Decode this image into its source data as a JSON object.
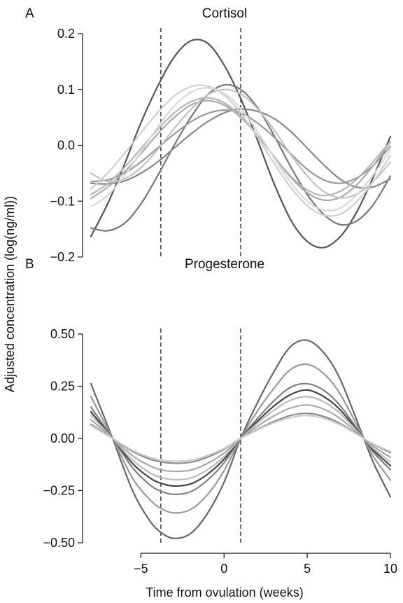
{
  "figure": {
    "ylabel": "Adjusted concentration (log(ng/ml))",
    "xlabel": "Time from ovulation (weeks)"
  },
  "chart_data": [
    {
      "type": "line",
      "panel_letter": "A",
      "title": "Cortisol",
      "xlim": [
        -8,
        10
      ],
      "ylim": [
        -0.2,
        0.2
      ],
      "yticks": [
        0.2,
        0.1,
        0.0,
        -0.1,
        -0.2
      ],
      "ytick_labels": [
        "0.2",
        "0.1",
        "0.0",
        "−0.1",
        "−0.2"
      ],
      "show_x_axis": false,
      "vlines": [
        -3.8,
        1.0
      ],
      "series": [
        {
          "color": "#555555",
          "x": [
            -8,
            -7,
            -6,
            -5,
            -4,
            -3,
            -2,
            -1,
            0,
            1,
            2,
            3,
            4,
            5,
            6,
            7,
            8,
            9,
            10
          ],
          "y": [
            -0.163,
            -0.105,
            -0.035,
            0.04,
            0.105,
            0.158,
            0.187,
            0.183,
            0.144,
            0.084,
            0.01,
            -0.068,
            -0.133,
            -0.172,
            -0.183,
            -0.163,
            -0.118,
            -0.055,
            0.016
          ]
        },
        {
          "color": "#777777",
          "x": [
            -8,
            -7,
            -6,
            -5,
            -4,
            -3,
            -2,
            -1,
            0,
            1,
            2,
            3,
            4,
            5,
            6,
            7,
            8,
            9,
            10
          ],
          "y": [
            -0.148,
            -0.153,
            -0.14,
            -0.105,
            -0.055,
            0.0,
            0.05,
            0.09,
            0.108,
            0.1,
            0.068,
            0.018,
            -0.038,
            -0.088,
            -0.124,
            -0.142,
            -0.135,
            -0.105,
            -0.055
          ]
        },
        {
          "color": "#888888",
          "x": [
            -8,
            -7,
            -6,
            -5,
            -4,
            -3,
            -2,
            -1,
            0,
            1,
            2,
            3,
            4,
            5,
            6,
            7,
            8,
            9,
            10
          ],
          "y": [
            -0.068,
            -0.069,
            -0.064,
            -0.05,
            -0.03,
            -0.005,
            0.02,
            0.042,
            0.058,
            0.065,
            0.061,
            0.048,
            0.025,
            -0.005,
            -0.035,
            -0.061,
            -0.075,
            -0.074,
            -0.06
          ]
        },
        {
          "color": "#999999",
          "x": [
            -8,
            -7,
            -6,
            -5,
            -4,
            -3,
            -2,
            -1,
            0,
            1,
            2,
            3,
            4,
            5,
            6,
            7,
            8,
            9,
            10
          ],
          "y": [
            -0.065,
            -0.062,
            -0.05,
            -0.03,
            -0.005,
            0.02,
            0.042,
            0.057,
            0.063,
            0.058,
            0.04,
            0.015,
            -0.015,
            -0.043,
            -0.062,
            -0.068,
            -0.058,
            -0.035,
            -0.002
          ]
        },
        {
          "color": "#aaaaaa",
          "x": [
            -8,
            -7,
            -6,
            -5,
            -4,
            -3,
            -2,
            -1,
            0,
            1,
            2,
            3,
            4,
            5,
            6,
            7,
            8,
            9,
            10
          ],
          "y": [
            -0.095,
            -0.075,
            -0.048,
            -0.015,
            0.02,
            0.05,
            0.072,
            0.08,
            0.072,
            0.05,
            0.018,
            -0.02,
            -0.057,
            -0.085,
            -0.098,
            -0.093,
            -0.07,
            -0.035,
            0.006
          ]
        },
        {
          "color": "#b5b5b5",
          "x": [
            -8,
            -7,
            -6,
            -5,
            -4,
            -3,
            -2,
            -1,
            0,
            1,
            2,
            3,
            4,
            5,
            6,
            7,
            8,
            9,
            10
          ],
          "y": [
            -0.088,
            -0.069,
            -0.04,
            -0.006,
            0.028,
            0.058,
            0.078,
            0.085,
            0.076,
            0.052,
            0.018,
            -0.02,
            -0.055,
            -0.08,
            -0.09,
            -0.082,
            -0.06,
            -0.028,
            0.007
          ]
        },
        {
          "color": "#c2c2c2",
          "x": [
            -8,
            -7,
            -6,
            -5,
            -4,
            -3,
            -2,
            -1,
            0,
            1,
            2,
            3,
            4,
            5,
            6,
            7,
            8,
            9,
            10
          ],
          "y": [
            -0.05,
            -0.065,
            -0.06,
            -0.04,
            -0.008,
            0.03,
            0.064,
            0.09,
            0.1,
            0.092,
            0.066,
            0.028,
            -0.016,
            -0.055,
            -0.083,
            -0.094,
            -0.087,
            -0.064,
            -0.03
          ]
        },
        {
          "color": "#cfcfcf",
          "x": [
            -8,
            -7,
            -6,
            -5,
            -4,
            -3,
            -2,
            -1,
            0,
            1,
            2,
            3,
            4,
            5,
            6,
            7,
            8,
            9,
            10
          ],
          "y": [
            -0.078,
            -0.05,
            -0.015,
            0.022,
            0.058,
            0.088,
            0.105,
            0.106,
            0.09,
            0.058,
            0.015,
            -0.032,
            -0.075,
            -0.108,
            -0.125,
            -0.123,
            -0.1,
            -0.064,
            -0.018
          ]
        },
        {
          "color": "#d8d8d8",
          "x": [
            -8,
            -7,
            -6,
            -5,
            -4,
            -3,
            -2,
            -1,
            0,
            1,
            2,
            3,
            4,
            5,
            6,
            7,
            8,
            9,
            10
          ],
          "y": [
            -0.11,
            -0.09,
            -0.055,
            -0.012,
            0.032,
            0.07,
            0.095,
            0.103,
            0.093,
            0.066,
            0.025,
            -0.022,
            -0.066,
            -0.1,
            -0.116,
            -0.112,
            -0.088,
            -0.052,
            -0.008
          ]
        }
      ]
    },
    {
      "type": "line",
      "panel_letter": "B",
      "title": "Progesterone",
      "xlim": [
        -8,
        10
      ],
      "ylim": [
        -0.5,
        0.5
      ],
      "xticks": [
        -5,
        0,
        5,
        10
      ],
      "xtick_labels": [
        "−5",
        "0",
        "5",
        "10"
      ],
      "yticks": [
        0.5,
        0.25,
        0.0,
        -0.25,
        -0.5
      ],
      "ytick_labels": [
        "0.50",
        "0.25",
        "0.00",
        "−0.25",
        "−0.50"
      ],
      "show_x_axis": true,
      "vlines": [
        -3.8,
        1.0
      ],
      "series": [
        {
          "color": "#666666",
          "amplitude": 0.48,
          "x": [
            -8,
            -6.7,
            -5.5,
            -4.5,
            -3.8,
            -3,
            -2,
            -1,
            0,
            1,
            2,
            3,
            4,
            5,
            6,
            7,
            8.4,
            9,
            10
          ],
          "y": [
            0.262,
            0.0,
            -0.25,
            -0.39,
            -0.45,
            -0.479,
            -0.455,
            -0.36,
            -0.21,
            0.0,
            0.17,
            0.32,
            0.44,
            0.47,
            0.41,
            0.28,
            0.0,
            -0.12,
            -0.28
          ]
        },
        {
          "color": "#999999",
          "amplitude": 0.36,
          "x": [
            -8,
            -6.7,
            -5.5,
            -4.5,
            -3.8,
            -3,
            -2,
            -1,
            0,
            1,
            2,
            3,
            4,
            5,
            6,
            7,
            8.4,
            9,
            10
          ],
          "y": [
            0.2,
            0.0,
            -0.19,
            -0.29,
            -0.335,
            -0.357,
            -0.34,
            -0.27,
            -0.155,
            0.0,
            0.13,
            0.24,
            0.33,
            0.355,
            0.31,
            0.21,
            0.0,
            -0.09,
            -0.2
          ]
        },
        {
          "color": "#808080",
          "amplitude": 0.27,
          "x": [
            -8,
            -6.7,
            -5.5,
            -4.5,
            -3.8,
            -3,
            -2,
            -1,
            0,
            1,
            2,
            3,
            4,
            5,
            6,
            7,
            8.4,
            9,
            10
          ],
          "y": [
            0.15,
            0.0,
            -0.14,
            -0.22,
            -0.253,
            -0.268,
            -0.255,
            -0.2,
            -0.117,
            0.0,
            0.095,
            0.18,
            0.245,
            0.262,
            0.23,
            0.155,
            0.0,
            -0.068,
            -0.15
          ]
        },
        {
          "color": "#444444",
          "amplitude": 0.23,
          "x": [
            -8,
            -6.7,
            -5.5,
            -4.5,
            -3.8,
            -3,
            -2,
            -1,
            0,
            1,
            2,
            3,
            4,
            5,
            6,
            7,
            8.4,
            9,
            10
          ],
          "y": [
            0.128,
            0.0,
            -0.12,
            -0.187,
            -0.215,
            -0.228,
            -0.218,
            -0.172,
            -0.1,
            0.0,
            0.082,
            0.155,
            0.21,
            0.232,
            0.2,
            0.135,
            0.0,
            -0.058,
            -0.13
          ]
        },
        {
          "color": "#bbbbbb",
          "amplitude": 0.2,
          "x": [
            -8,
            -6.7,
            -5.5,
            -4.5,
            -3.8,
            -3,
            -2,
            -1,
            0,
            1,
            2,
            3,
            4,
            5,
            6,
            7,
            8.4,
            9,
            10
          ],
          "y": [
            0.112,
            0.0,
            -0.104,
            -0.163,
            -0.187,
            -0.198,
            -0.19,
            -0.15,
            -0.087,
            0.0,
            0.072,
            0.135,
            0.183,
            0.2,
            0.175,
            0.118,
            0.0,
            -0.05,
            -0.112
          ]
        },
        {
          "color": "#a8a8a8",
          "amplitude": 0.16,
          "x": [
            -8,
            -6.7,
            -5.5,
            -4.5,
            -3.8,
            -3,
            -2,
            -1,
            0,
            1,
            2,
            3,
            4,
            5,
            6,
            7,
            8.4,
            9,
            10
          ],
          "y": [
            0.09,
            0.0,
            -0.083,
            -0.13,
            -0.15,
            -0.158,
            -0.152,
            -0.12,
            -0.07,
            0.0,
            0.058,
            0.108,
            0.146,
            0.16,
            0.14,
            0.094,
            0.0,
            -0.04,
            -0.09
          ]
        },
        {
          "color": "#8c8c8c",
          "amplitude": 0.12,
          "x": [
            -8,
            -6.7,
            -5.5,
            -4.5,
            -3.8,
            -3,
            -2,
            -1,
            0,
            1,
            2,
            3,
            4,
            5,
            6,
            7,
            8.4,
            9,
            10
          ],
          "y": [
            0.068,
            0.0,
            -0.062,
            -0.098,
            -0.112,
            -0.119,
            -0.114,
            -0.09,
            -0.052,
            0.0,
            0.043,
            0.081,
            0.11,
            0.12,
            0.105,
            0.07,
            0.0,
            -0.03,
            -0.068
          ]
        },
        {
          "color": "#cccccc",
          "amplitude": 0.11,
          "x": [
            -8,
            -6.7,
            -5.5,
            -4.5,
            -3.8,
            -3,
            -2,
            -1,
            0,
            1,
            2,
            3,
            4,
            5,
            6,
            7,
            8.4,
            9,
            10
          ],
          "y": [
            0.062,
            0.0,
            -0.057,
            -0.09,
            -0.103,
            -0.109,
            -0.104,
            -0.082,
            -0.048,
            0.0,
            0.04,
            0.075,
            0.1,
            0.11,
            0.096,
            0.065,
            0.0,
            -0.028,
            -0.062
          ]
        }
      ]
    }
  ]
}
